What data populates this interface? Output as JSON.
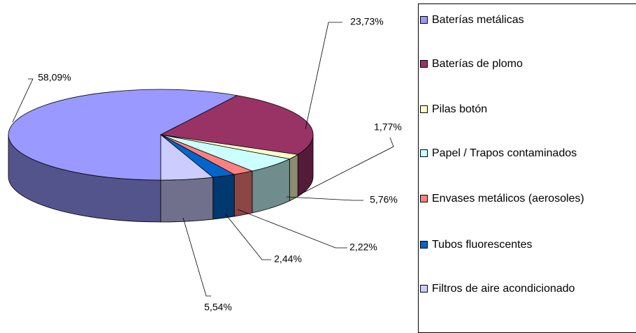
{
  "chart_data": {
    "type": "pie3d",
    "categories": [
      "Baterías metálicas",
      "Baterías de plomo",
      "Pilas botón",
      "Papel / Trapos contaminados",
      "Envases metálicos (aerosoles)",
      "Tubos fluorescentes",
      "Filtros de aire acondicionado"
    ],
    "values": [
      58.09,
      23.73,
      1.77,
      5.76,
      2.22,
      2.44,
      5.54
    ],
    "value_labels": [
      "58,09%",
      "23,73%",
      "1,77%",
      "5,76%",
      "2,22%",
      "2,44%",
      "5,54%"
    ],
    "colors": [
      "#9999ff",
      "#993366",
      "#ffffcc",
      "#ccffff",
      "#ff8080",
      "#0066cc",
      "#ccccff"
    ],
    "legend": "right"
  }
}
